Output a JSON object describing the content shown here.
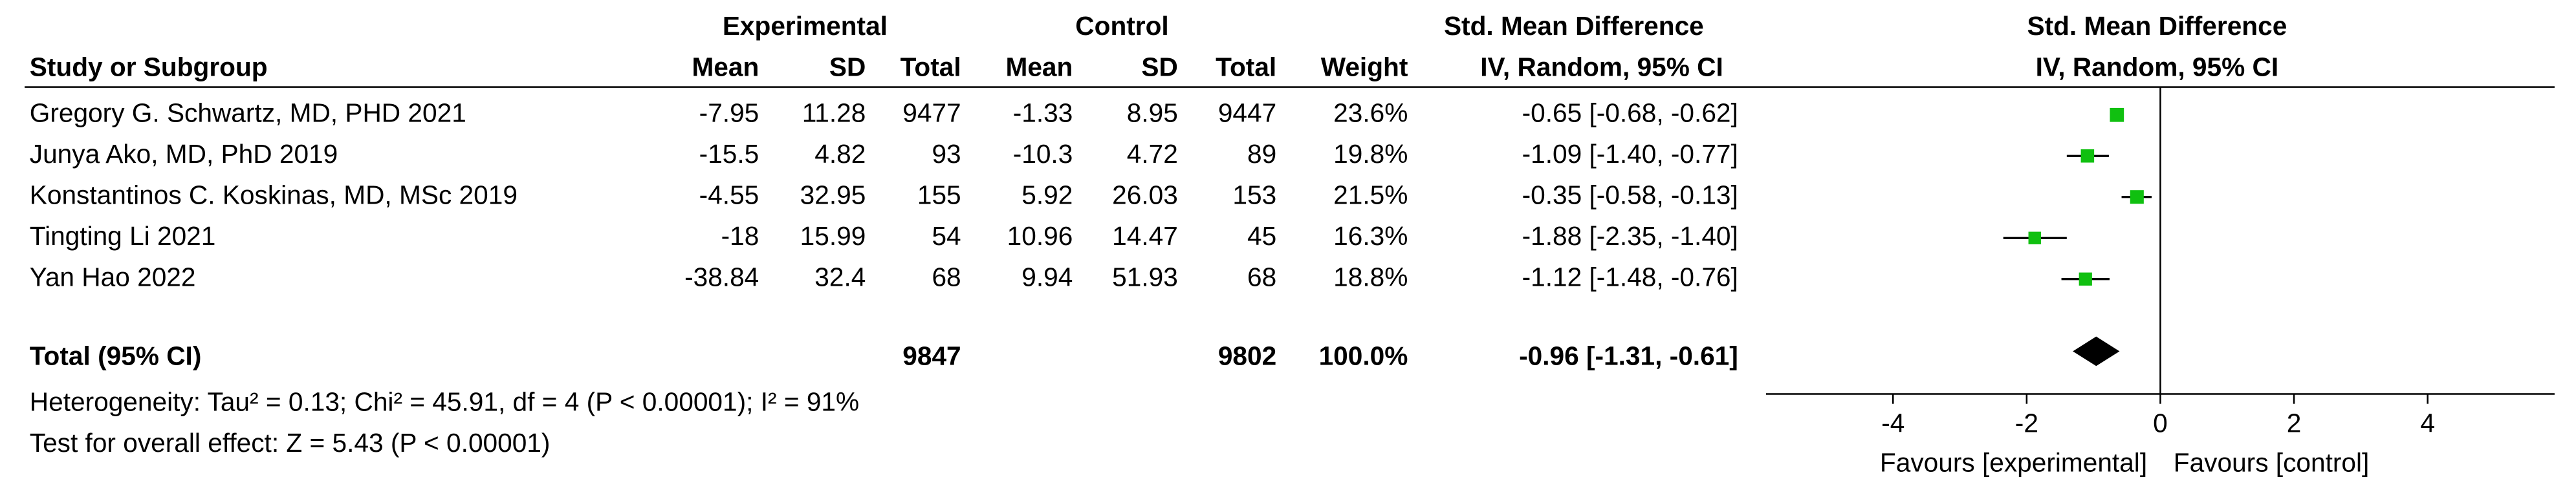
{
  "chart_data": {
    "type": "forest",
    "header": {
      "experimental": "Experimental",
      "control": "Control",
      "effect": "Std. Mean Difference",
      "study": "Study or Subgroup",
      "columns": [
        "Mean",
        "SD",
        "Total",
        "Mean",
        "SD",
        "Total",
        "Weight",
        "IV, Random, 95% CI"
      ]
    },
    "plot_header": {
      "title": "Std. Mean Difference",
      "subtitle": "IV, Random, 95% CI"
    },
    "studies": [
      {
        "name": "Gregory G. Schwartz, MD, PHD 2021",
        "exp_mean": -7.95,
        "exp_sd": 11.28,
        "exp_total": 9477,
        "ctrl_mean": -1.33,
        "ctrl_sd": 8.95,
        "ctrl_total": 9447,
        "weight": 23.6,
        "weight_label": "23.6%",
        "estimate": -0.65,
        "ci_low": -0.68,
        "ci_high": -0.62,
        "ci_label": "-0.65 [-0.68, -0.62]"
      },
      {
        "name": "Junya Ako, MD, PhD 2019",
        "exp_mean": -15.5,
        "exp_sd": 4.82,
        "exp_total": 93,
        "ctrl_mean": -10.3,
        "ctrl_sd": 4.72,
        "ctrl_total": 89,
        "weight": 19.8,
        "weight_label": "19.8%",
        "estimate": -1.09,
        "ci_low": -1.4,
        "ci_high": -0.77,
        "ci_label": "-1.09 [-1.40, -0.77]"
      },
      {
        "name": "Konstantinos C. Koskinas, MD, MSc 2019",
        "exp_mean": -4.55,
        "exp_sd": 32.95,
        "exp_total": 155,
        "ctrl_mean": 5.92,
        "ctrl_sd": 26.03,
        "ctrl_total": 153,
        "weight": 21.5,
        "weight_label": "21.5%",
        "estimate": -0.35,
        "ci_low": -0.58,
        "ci_high": -0.13,
        "ci_label": "-0.35 [-0.58, -0.13]"
      },
      {
        "name": "Tingting Li 2021",
        "exp_mean": -18,
        "exp_sd": 15.99,
        "exp_total": 54,
        "ctrl_mean": 10.96,
        "ctrl_sd": 14.47,
        "ctrl_total": 45,
        "weight": 16.3,
        "weight_label": "16.3%",
        "estimate": -1.88,
        "ci_low": -2.35,
        "ci_high": -1.4,
        "ci_label": "-1.88 [-2.35, -1.40]"
      },
      {
        "name": "Yan Hao 2022",
        "exp_mean": -38.84,
        "exp_sd": 32.4,
        "exp_total": 68,
        "ctrl_mean": 9.94,
        "ctrl_sd": 51.93,
        "ctrl_total": 68,
        "weight": 18.8,
        "weight_label": "18.8%",
        "estimate": -1.12,
        "ci_low": -1.48,
        "ci_high": -0.76,
        "ci_label": "-1.12 [-1.48, -0.76]"
      }
    ],
    "total": {
      "name": "Total (95% CI)",
      "exp_total": 9847,
      "ctrl_total": 9802,
      "weight": 100,
      "weight_label": "100.0%",
      "estimate": -0.96,
      "ci_low": -1.31,
      "ci_high": -0.61,
      "ci_label": "-0.96 [-1.31, -0.61]"
    },
    "heterogeneity": "Heterogeneity: Tau² = 0.13; Chi² = 45.91, df = 4 (P < 0.00001); I² = 91%",
    "overall_effect": "Test for overall effect: Z = 5.43 (P < 0.00001)",
    "xlim": [
      -5.9,
      5.9
    ],
    "xticks": [
      -4,
      -2,
      0,
      2,
      4
    ],
    "favours": [
      "Favours [experimental]",
      "Favours [control]"
    ],
    "color": "#10c010"
  }
}
